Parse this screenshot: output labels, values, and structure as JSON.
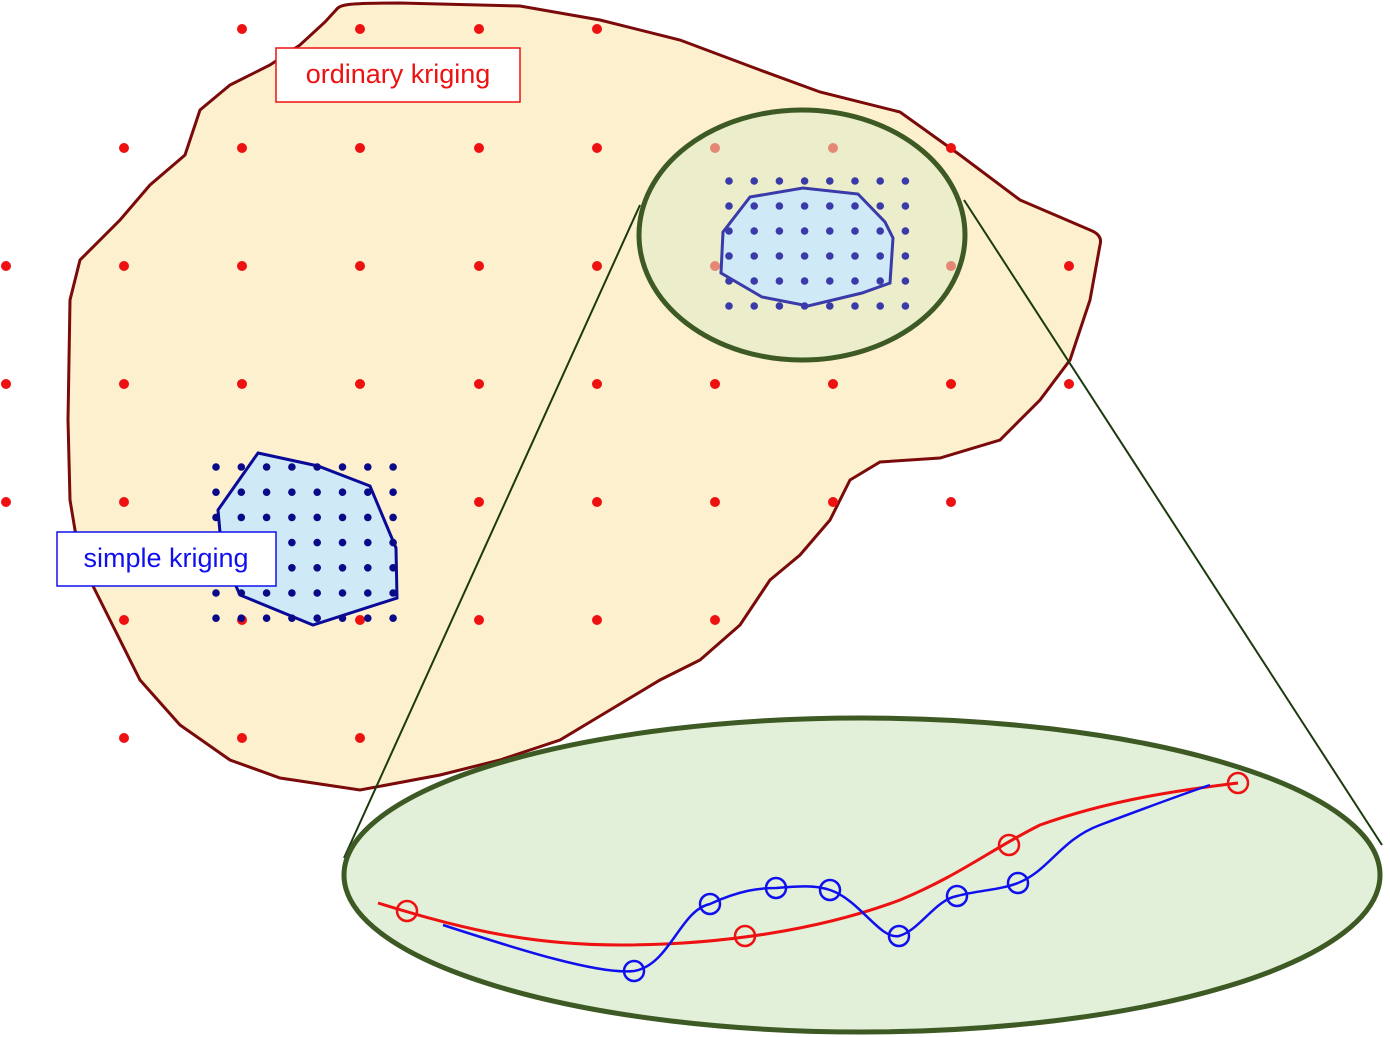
{
  "labels": {
    "ordinary": "ordinary kriging",
    "simple": "simple kriging"
  }
}
